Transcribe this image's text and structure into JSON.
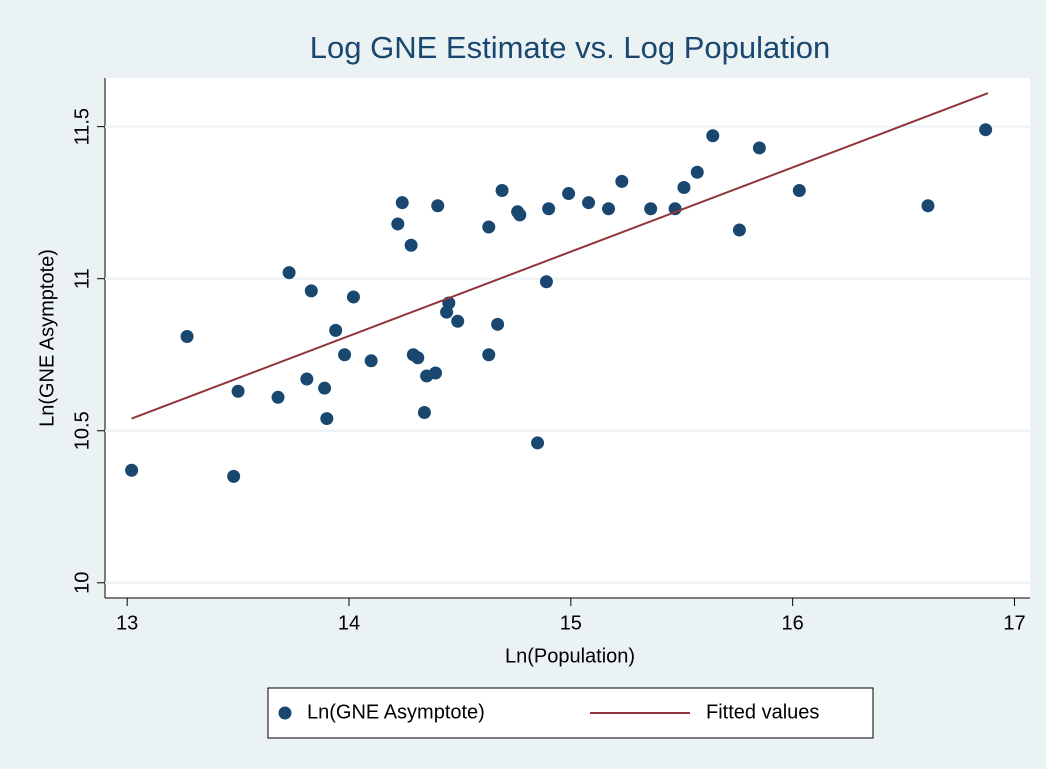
{
  "chart_data": {
    "type": "scatter",
    "title": "Log GNE Estimate vs. Log Population",
    "x_label": "Ln(Population)",
    "y_label": "Ln(GNE Asymptote)",
    "xlim": [
      12.9,
      17.07
    ],
    "ylim": [
      9.95,
      11.66
    ],
    "xticks": [
      13,
      14,
      15,
      16,
      17
    ],
    "yticks": [
      10,
      10.5,
      11,
      11.5
    ],
    "grid": true,
    "legend": "bottom",
    "series": [
      {
        "name": "Ln(GNE Asymptote)",
        "type": "scatter",
        "color": "#1a476f",
        "x": [
          13.02,
          13.27,
          13.48,
          13.5,
          13.68,
          13.73,
          13.81,
          13.83,
          13.89,
          13.9,
          13.94,
          13.98,
          14.02,
          14.1,
          14.22,
          14.24,
          14.28,
          14.29,
          14.31,
          14.34,
          14.35,
          14.39,
          14.4,
          14.45,
          14.44,
          14.49,
          14.63,
          14.63,
          14.67,
          14.69,
          14.76,
          14.77,
          14.85,
          14.89,
          14.9,
          14.99,
          15.08,
          15.17,
          15.23,
          15.36,
          15.47,
          15.51,
          15.57,
          15.64,
          15.76,
          15.85,
          16.03,
          16.61,
          16.87
        ],
        "values": [
          10.37,
          10.81,
          10.35,
          10.63,
          10.61,
          11.02,
          10.67,
          10.96,
          10.64,
          10.54,
          10.83,
          10.75,
          10.94,
          10.73,
          11.18,
          11.25,
          11.11,
          10.75,
          10.74,
          10.56,
          10.68,
          10.69,
          11.24,
          10.92,
          10.89,
          10.86,
          10.75,
          11.17,
          10.85,
          11.29,
          11.22,
          11.21,
          10.46,
          10.99,
          11.23,
          11.28,
          11.25,
          11.23,
          11.32,
          11.23,
          11.23,
          11.3,
          11.35,
          11.47,
          11.16,
          11.43,
          11.29,
          11.24,
          11.49
        ]
      },
      {
        "name": "Fitted values",
        "type": "line",
        "color": "#90353b",
        "x": [
          13.02,
          16.88
        ],
        "values": [
          10.54,
          11.61
        ]
      }
    ]
  }
}
